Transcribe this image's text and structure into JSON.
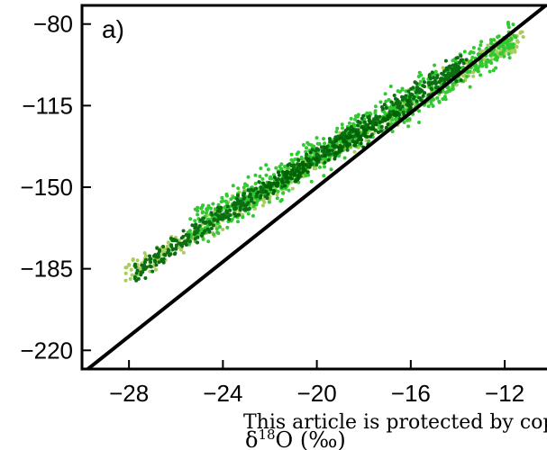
{
  "chart_data": {
    "type": "scatter",
    "panel_label": "a)",
    "xlabel_prefix": "δ",
    "xlabel_sup": "18",
    "xlabel_suffix": "O (‰)",
    "ylabel": "",
    "xlim": [
      -30,
      -10.2
    ],
    "ylim": [
      -228,
      -72
    ],
    "xticks": [
      -28,
      -24,
      -20,
      -16,
      -12
    ],
    "yticks": [
      -80,
      -115,
      -150,
      -185,
      -220
    ],
    "xtick_labels": [
      "−28",
      "−24",
      "−20",
      "−16",
      "−12"
    ],
    "ytick_labels": [
      "−80",
      "−115",
      "−150",
      "−185",
      "−220"
    ],
    "grid": false,
    "reference_line": {
      "slope": 8,
      "intercept": 10,
      "color": "#000000"
    },
    "series": [
      {
        "color": "#a8cc5e",
        "x_range": [
          -28.2,
          -11.2
        ],
        "slope": 6.05,
        "intercept": -17.5,
        "spread": 2.6,
        "count": 550
      },
      {
        "color": "#32c832",
        "x_range": [
          -25.5,
          -11.5
        ],
        "slope": 6.0,
        "intercept": -17.0,
        "spread": 3.8,
        "count": 850
      },
      {
        "color": "#0b6e12",
        "x_range": [
          -27.8,
          -13.6
        ],
        "slope": 6.3,
        "intercept": -11.0,
        "spread": 2.3,
        "count": 600
      },
      {
        "color": "#006400",
        "x_range": [
          -22.5,
          -16.0
        ],
        "slope": 5.5,
        "intercept": -28.0,
        "spread": 2.0,
        "count": 150
      }
    ]
  },
  "watermark": "This article is protected by copyright. All rights reserved."
}
